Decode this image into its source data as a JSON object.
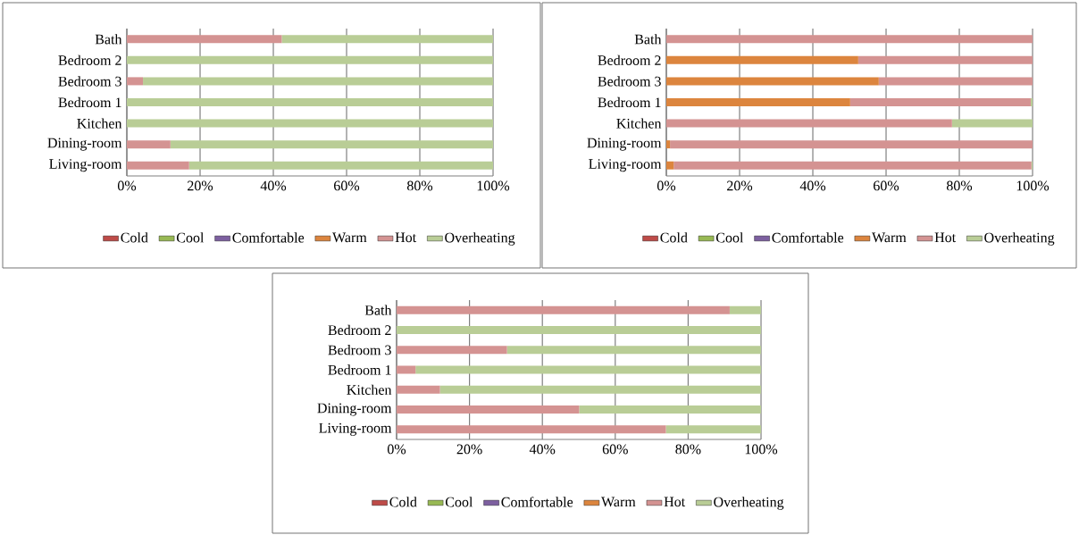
{
  "chart_data": [
    {
      "type": "bar",
      "orientation": "horizontal",
      "stacked": true,
      "grid": "x",
      "legend": "bottom",
      "categories": [
        "Bath",
        "Bedroom 2",
        "Bedroom 3",
        "Bedroom 1",
        "Kitchen",
        "Dining-room",
        "Living-room"
      ],
      "xlim": [
        0,
        100
      ],
      "xticks": [
        {
          "value": 0,
          "label": "0%"
        },
        {
          "value": 20,
          "label": "20%"
        },
        {
          "value": 40,
          "label": "40%"
        },
        {
          "value": 60,
          "label": "60%"
        },
        {
          "value": 80,
          "label": "80%"
        },
        {
          "value": 100,
          "label": "100%"
        }
      ],
      "series": [
        {
          "name": "Cold",
          "color": "#be4b48",
          "values": [
            0,
            0,
            0,
            0,
            0,
            0,
            0
          ]
        },
        {
          "name": "Cool",
          "color": "#98b954",
          "values": [
            0,
            0,
            0,
            0,
            0,
            0,
            0
          ]
        },
        {
          "name": "Comfortable",
          "color": "#7d60a0",
          "values": [
            0,
            0,
            0,
            0,
            0,
            0,
            0
          ]
        },
        {
          "name": "Warm",
          "color": "#dc853e",
          "values": [
            0,
            0,
            0,
            0,
            0,
            0,
            0
          ]
        },
        {
          "name": "Hot",
          "color": "#d49392",
          "values": [
            42.3,
            0,
            4.4,
            0,
            0,
            11.9,
            17
          ]
        },
        {
          "name": "Overheating",
          "color": "#b9cd96",
          "values": [
            57.7,
            100,
            95.6,
            100,
            100,
            88.1,
            83
          ]
        }
      ]
    },
    {
      "type": "bar",
      "orientation": "horizontal",
      "stacked": true,
      "grid": "x",
      "legend": "bottom",
      "categories": [
        "Bath",
        "Bedroom 2",
        "Bedroom 3",
        "Bedroom 1",
        "Kitchen",
        "Dining-room",
        "Living-room"
      ],
      "xlim": [
        0,
        100
      ],
      "xticks": [
        {
          "value": 0,
          "label": "0%"
        },
        {
          "value": 20,
          "label": "20%"
        },
        {
          "value": 40,
          "label": "40%"
        },
        {
          "value": 60,
          "label": "60%"
        },
        {
          "value": 80,
          "label": "80%"
        },
        {
          "value": 100,
          "label": "100%"
        }
      ],
      "series": [
        {
          "name": "Cold",
          "color": "#be4b48",
          "values": [
            0,
            0,
            0,
            0,
            0,
            0,
            0
          ]
        },
        {
          "name": "Cool",
          "color": "#98b954",
          "values": [
            0,
            0,
            0,
            0,
            0,
            0,
            0
          ]
        },
        {
          "name": "Comfortable",
          "color": "#7d60a0",
          "values": [
            0,
            0,
            0,
            0,
            0,
            0,
            0
          ]
        },
        {
          "name": "Warm",
          "color": "#dc853e",
          "values": [
            0,
            52.4,
            58,
            50.2,
            0,
            1,
            2
          ]
        },
        {
          "name": "Hot",
          "color": "#d49392",
          "values": [
            100,
            47.6,
            42,
            49.3,
            78,
            99,
            97.7
          ]
        },
        {
          "name": "Overheating",
          "color": "#b9cd96",
          "values": [
            0,
            0,
            0,
            0.5,
            22,
            0,
            0.3
          ]
        }
      ]
    },
    {
      "type": "bar",
      "orientation": "horizontal",
      "stacked": true,
      "grid": "x",
      "legend": "bottom",
      "categories": [
        "Bath",
        "Bedroom 2",
        "Bedroom 3",
        "Bedroom 1",
        "Kitchen",
        "Dining-room",
        "Living-room"
      ],
      "xlim": [
        0,
        100
      ],
      "xticks": [
        {
          "value": 0,
          "label": "0%"
        },
        {
          "value": 20,
          "label": "20%"
        },
        {
          "value": 40,
          "label": "40%"
        },
        {
          "value": 60,
          "label": "60%"
        },
        {
          "value": 80,
          "label": "80%"
        },
        {
          "value": 100,
          "label": "100%"
        }
      ],
      "series": [
        {
          "name": "Cold",
          "color": "#be4b48",
          "values": [
            0,
            0,
            0,
            0,
            0,
            0,
            0
          ]
        },
        {
          "name": "Cool",
          "color": "#98b954",
          "values": [
            0,
            0,
            0,
            0,
            0,
            0,
            0
          ]
        },
        {
          "name": "Comfortable",
          "color": "#7d60a0",
          "values": [
            0,
            0,
            0,
            0,
            0,
            0,
            0
          ]
        },
        {
          "name": "Warm",
          "color": "#dc853e",
          "values": [
            0,
            0,
            0,
            0,
            0,
            0,
            0
          ]
        },
        {
          "name": "Hot",
          "color": "#d49392",
          "values": [
            91.4,
            0,
            30.3,
            5.2,
            11.9,
            50.1,
            73.9
          ]
        },
        {
          "name": "Overheating",
          "color": "#b9cd96",
          "values": [
            8.6,
            100,
            69.7,
            94.8,
            88.1,
            49.9,
            26.1
          ]
        }
      ]
    }
  ]
}
